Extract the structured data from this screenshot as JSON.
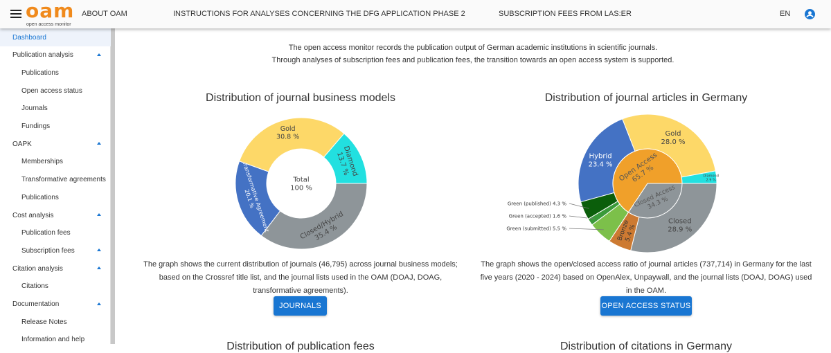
{
  "header": {
    "logo_text": "oam",
    "logo_sub": "open access monitor",
    "about": "ABOUT OAM",
    "nav1": "INSTRUCTIONS FOR ANALYSES CONCERNING THE DFG APPLICATION PHASE 2",
    "nav2": "SUBSCRIPTION FEES FROM LAS:ER",
    "lang": "EN"
  },
  "sidebar": {
    "items": [
      {
        "label": "Dashboard",
        "level": 1,
        "active": true
      },
      {
        "label": "Publication analysis",
        "level": 1,
        "expand": true
      },
      {
        "label": "Publications",
        "level": 2
      },
      {
        "label": "Open access status",
        "level": 2
      },
      {
        "label": "Journals",
        "level": 2
      },
      {
        "label": "Fundings",
        "level": 2
      },
      {
        "label": "OAPK",
        "level": 1,
        "expand": true
      },
      {
        "label": "Memberships",
        "level": 2
      },
      {
        "label": "Transformative agreements",
        "level": 2
      },
      {
        "label": "Publications",
        "level": 2
      },
      {
        "label": "Cost analysis",
        "level": 1,
        "expand": true
      },
      {
        "label": "Publication fees",
        "level": 2
      },
      {
        "label": "Subscription fees",
        "level": 2,
        "expand": true
      },
      {
        "label": "Citation analysis",
        "level": 1,
        "expand": true
      },
      {
        "label": "Citations",
        "level": 2
      },
      {
        "label": "Documentation",
        "level": 1,
        "expand": true
      },
      {
        "label": "Release Notes",
        "level": 2
      },
      {
        "label": "Information and help",
        "level": 2
      }
    ]
  },
  "intro": {
    "line1": "The open access monitor records the publication output of German academic institutions in scientific journals.",
    "line2": "Through analyses of subscription fees and publication fees, the transition towards an open access system is supported."
  },
  "cards": [
    {
      "title": "Distribution of journal business models",
      "description": "The graph shows the current distribution of journals (46,795) across journal business models; based on the Crossref title list, and the journal lists used in the OAM (DOAJ, DOAG, transformative agreements).",
      "button": "JOURNALS"
    },
    {
      "title": "Distribution of journal articles in Germany",
      "description": "The graph shows the open/closed access ratio of journal articles (737,714) in Germany for the last five years (2020 - 2024) based on OpenAlex, Unpaywall, and the journal lists (DOAJ, DOAG) used in the OAM.",
      "button": "OPEN ACCESS STATUS"
    }
  ],
  "bottom_titles": [
    "Distribution of publication fees",
    "Distribution of citations in Germany"
  ],
  "chart_data": [
    {
      "type": "pie",
      "title": "Distribution of journal business models",
      "center_label": "Total",
      "center_value": "100 %",
      "slices": [
        {
          "name": "Closed/Hybrid",
          "value": 35.4,
          "color": "#8e9599"
        },
        {
          "name": "Transformative Agreement",
          "value": 20.1,
          "color": "#4472c4"
        },
        {
          "name": "Gold",
          "value": 30.8,
          "color": "#fdd868"
        },
        {
          "name": "Diamond",
          "value": 13.7,
          "color": "#22e0e0"
        }
      ]
    },
    {
      "type": "sunburst",
      "title": "Distribution of journal articles in Germany",
      "inner": [
        {
          "name": "Closed Access",
          "value": 34.3,
          "color": "#8e9599"
        },
        {
          "name": "Open Access",
          "value": 65.7,
          "color": "#f0a02a"
        }
      ],
      "outer": [
        {
          "name": "Closed",
          "value": 28.9,
          "color": "#8e9599"
        },
        {
          "name": "Bronze",
          "value": 5.4,
          "color": "#cd7a32"
        },
        {
          "name": "Green (submitted)",
          "value": 5.5,
          "color": "#7cc04a"
        },
        {
          "name": "Green (accepted)",
          "value": 1.6,
          "color": "#3a9a3a"
        },
        {
          "name": "Green (published)",
          "value": 4.3,
          "color": "#0b5e0b"
        },
        {
          "name": "Hybrid",
          "value": 23.4,
          "color": "#4472c4"
        },
        {
          "name": "Gold",
          "value": 28.0,
          "color": "#fdd868"
        },
        {
          "name": "Diamond",
          "value": 2.9,
          "color": "#22e0e0"
        }
      ]
    }
  ]
}
